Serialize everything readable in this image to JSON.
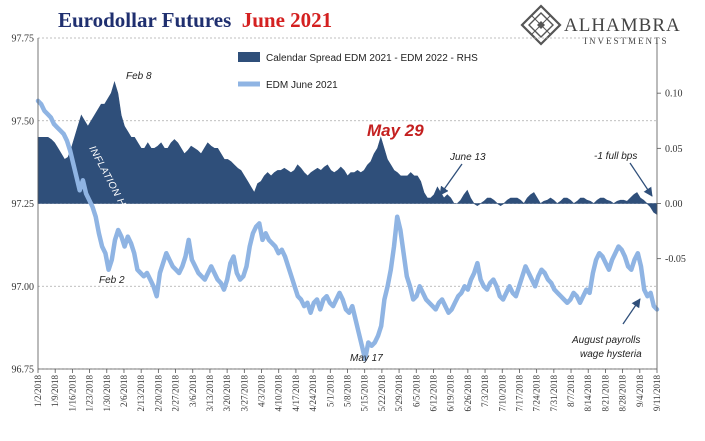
{
  "header": {
    "title_main": "Eurodollar Futures",
    "title_highlight": "June 2021"
  },
  "logo": {
    "name": "ALHAMBRA",
    "subtitle": "INVESTMENTS",
    "icon": "diamond-lattice-icon"
  },
  "colors": {
    "title": "#1f2f6f",
    "title_highlight": "#d42020",
    "spread_area": "#2f4f7a",
    "edm_line": "#8fb4e3",
    "gridline": "#aaaaaa"
  },
  "chart_data": {
    "type": "line",
    "title": "Eurodollar Futures June 2021",
    "x_tick_labels": [
      "1/2/2018",
      "1/9/2018",
      "1/16/2018",
      "1/23/2018",
      "1/30/2018",
      "2/6/2018",
      "2/13/2018",
      "2/20/2018",
      "2/27/2018",
      "3/6/2018",
      "3/13/2018",
      "3/20/2018",
      "3/27/2018",
      "4/3/2018",
      "4/10/2018",
      "4/17/2018",
      "4/24/2018",
      "5/1/2018",
      "5/8/2018",
      "5/15/2018",
      "5/22/2018",
      "5/29/2018",
      "6/5/2018",
      "6/12/2018",
      "6/19/2018",
      "6/26/2018",
      "7/3/2018",
      "7/10/2018",
      "7/17/2018",
      "7/24/2018",
      "7/31/2018",
      "8/7/2018",
      "8/14/2018",
      "8/21/2018",
      "8/28/2018",
      "9/4/2018",
      "9/11/2018"
    ],
    "y_left": {
      "ticks": [
        "97.75",
        "97.50",
        "97.25",
        "97.00",
        "96.75"
      ],
      "range": [
        96.75,
        97.75
      ]
    },
    "y_right": {
      "ticks": [
        "0.10",
        "0.05",
        "0.00",
        "-0.05"
      ],
      "range": [
        -0.15,
        0.15
      ]
    },
    "grid": "horizontal dashed",
    "legend_position": "top-center",
    "series": [
      {
        "name": "Calendar Spread EDM 2021 - EDM 2022 - RHS",
        "type": "area",
        "axis": "right",
        "values": [
          0.06,
          0.06,
          0.06,
          0.06,
          0.058,
          0.055,
          0.05,
          0.045,
          0.04,
          0.042,
          0.05,
          0.06,
          0.07,
          0.08,
          0.075,
          0.07,
          0.075,
          0.08,
          0.085,
          0.09,
          0.09,
          0.095,
          0.1,
          0.11,
          0.1,
          0.08,
          0.07,
          0.065,
          0.06,
          0.06,
          0.055,
          0.05,
          0.05,
          0.055,
          0.05,
          0.05,
          0.052,
          0.055,
          0.05,
          0.05,
          0.055,
          0.058,
          0.055,
          0.05,
          0.045,
          0.048,
          0.052,
          0.05,
          0.048,
          0.045,
          0.05,
          0.055,
          0.052,
          0.05,
          0.05,
          0.045,
          0.04,
          0.04,
          0.038,
          0.035,
          0.032,
          0.03,
          0.025,
          0.02,
          0.015,
          0.01,
          0.018,
          0.02,
          0.025,
          0.028,
          0.025,
          0.028,
          0.03,
          0.03,
          0.032,
          0.03,
          0.028,
          0.03,
          0.035,
          0.032,
          0.028,
          0.025,
          0.028,
          0.03,
          0.032,
          0.03,
          0.033,
          0.035,
          0.03,
          0.028,
          0.03,
          0.033,
          0.03,
          0.025,
          0.028,
          0.028,
          0.03,
          0.028,
          0.03,
          0.035,
          0.038,
          0.045,
          0.05,
          0.06,
          0.05,
          0.04,
          0.035,
          0.03,
          0.028,
          0.025,
          0.025,
          0.025,
          0.028,
          0.025,
          0.025,
          0.02,
          0.01,
          0.005,
          0.005,
          0.008,
          0.015,
          0.01,
          0.005,
          0.008,
          0.005,
          0.0,
          0.0,
          0.003,
          0.008,
          0.012,
          0.005,
          0.0,
          -0.002,
          0.0,
          0.002,
          0.005,
          0.005,
          0.003,
          0.0,
          -0.002,
          0.0,
          0.003,
          0.005,
          0.005,
          0.005,
          0.003,
          0.0,
          0.005,
          0.008,
          0.01,
          0.005,
          0.0,
          0.002,
          0.003,
          0.005,
          0.003,
          0.0,
          0.002,
          0.005,
          0.005,
          0.003,
          0.0,
          0.002,
          0.005,
          0.005,
          0.003,
          0.002,
          0.0,
          0.003,
          0.005,
          0.005,
          0.003,
          0.002,
          0.0,
          0.002,
          0.003,
          0.003,
          0.002,
          0.005,
          0.008,
          0.01,
          0.005,
          0.003,
          0.0,
          -0.003,
          -0.008,
          -0.01
        ]
      },
      {
        "name": "EDM June 2021",
        "type": "line",
        "axis": "left",
        "values": [
          97.56,
          97.55,
          97.53,
          97.52,
          97.51,
          97.49,
          97.48,
          97.47,
          97.46,
          97.44,
          97.41,
          97.37,
          97.33,
          97.29,
          97.32,
          97.28,
          97.26,
          97.24,
          97.21,
          97.16,
          97.12,
          97.1,
          97.05,
          97.08,
          97.14,
          97.17,
          97.15,
          97.12,
          97.15,
          97.13,
          97.1,
          97.05,
          97.04,
          97.03,
          97.04,
          97.02,
          97.0,
          96.97,
          97.04,
          97.07,
          97.1,
          97.08,
          97.06,
          97.05,
          97.04,
          97.06,
          97.09,
          97.14,
          97.08,
          97.06,
          97.04,
          97.03,
          97.02,
          97.04,
          97.06,
          97.04,
          97.02,
          97.01,
          96.99,
          97.02,
          97.07,
          97.09,
          97.04,
          97.02,
          97.03,
          97.06,
          97.12,
          97.16,
          97.18,
          97.19,
          97.14,
          97.16,
          97.14,
          97.13,
          97.12,
          97.1,
          97.11,
          97.09,
          97.06,
          97.03,
          97.0,
          96.97,
          96.96,
          96.94,
          96.95,
          96.92,
          96.95,
          96.96,
          96.93,
          96.96,
          96.97,
          96.95,
          96.94,
          96.96,
          96.98,
          96.96,
          96.93,
          96.92,
          96.94,
          96.9,
          96.86,
          96.82,
          96.78,
          96.83,
          96.82,
          96.83,
          96.85,
          96.88,
          96.96,
          97.0,
          97.05,
          97.12,
          97.21,
          97.17,
          97.1,
          97.03,
          97.0,
          96.96,
          96.97,
          97.0,
          96.98,
          96.96,
          96.95,
          96.94,
          96.93,
          96.95,
          96.96,
          96.94,
          96.92,
          96.93,
          96.95,
          96.97,
          96.98,
          97.0,
          96.99,
          97.02,
          97.04,
          97.07,
          97.02,
          97.0,
          96.99,
          97.01,
          97.02,
          97.0,
          96.97,
          96.96,
          96.98,
          97.0,
          96.98,
          96.97,
          97.0,
          97.03,
          97.06,
          97.04,
          97.02,
          97.0,
          97.03,
          97.05,
          97.04,
          97.02,
          97.01,
          96.99,
          96.98,
          96.97,
          96.96,
          96.95,
          96.96,
          96.98,
          96.97,
          96.95,
          96.97,
          96.99,
          96.98,
          97.04,
          97.08,
          97.1,
          97.09,
          97.07,
          97.05,
          97.08,
          97.1,
          97.12,
          97.11,
          97.09,
          97.06,
          97.05,
          97.08,
          97.1,
          97.06,
          96.99,
          96.97,
          96.98,
          96.94,
          96.93
        ]
      }
    ],
    "annotations": [
      {
        "id": "feb8",
        "text": "Feb 8"
      },
      {
        "id": "feb2",
        "text": "Feb 2"
      },
      {
        "id": "may29",
        "text": "May 29"
      },
      {
        "id": "may17",
        "text": "May 17"
      },
      {
        "id": "june13",
        "text": "June 13"
      },
      {
        "id": "full_bps",
        "text": "-1 full bps"
      },
      {
        "id": "inflation",
        "text": "INFLATION HYSTERIA"
      },
      {
        "id": "payrolls1",
        "text": "August payrolls"
      },
      {
        "id": "payrolls2",
        "text": "wage hysteria"
      }
    ]
  }
}
